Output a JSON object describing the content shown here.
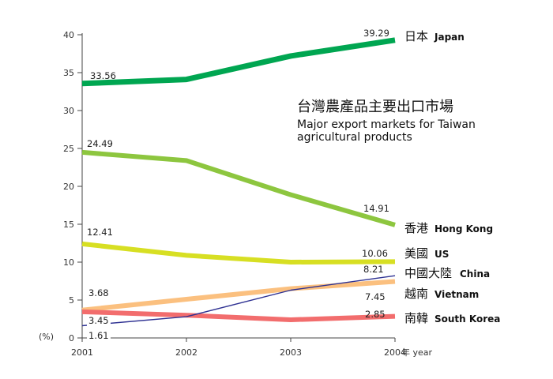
{
  "chart_data": {
    "type": "line",
    "title_zh": "台灣農產品主要出口市場",
    "title_en_line1": "Major export markets for Taiwan",
    "title_en_line2": "agricultural products",
    "x": [
      2001,
      2002,
      2003,
      2004
    ],
    "x_ticks": [
      "2001",
      "2002",
      "2003",
      "2004"
    ],
    "xlabel": "年 year",
    "ylabel": "(%)",
    "ylim": [
      0,
      40
    ],
    "y_ticks": [
      "0",
      "5",
      "10",
      "15",
      "20",
      "25",
      "30",
      "35",
      "40"
    ],
    "grid": false,
    "series": [
      {
        "key": "japan",
        "name_zh": "日本",
        "name_en": "Japan",
        "color": "#00a651",
        "values": [
          33.56,
          34.1,
          37.2,
          39.29
        ],
        "start_label": "33.56",
        "end_label": "39.29"
      },
      {
        "key": "hongkong",
        "name_zh": "香港",
        "name_en": "Hong Kong",
        "color": "#8dc63f",
        "values": [
          24.49,
          23.4,
          18.9,
          14.91
        ],
        "start_label": "24.49",
        "end_label": "14.91"
      },
      {
        "key": "us",
        "name_zh": "美國",
        "name_en": "US",
        "color": "#d7df23",
        "values": [
          12.41,
          10.9,
          10.0,
          10.06
        ],
        "start_label": "12.41",
        "end_label": "10.06"
      },
      {
        "key": "china",
        "name_zh": "中國大陸",
        "name_en": "China",
        "color": "#2e3192",
        "values": [
          1.61,
          2.8,
          6.3,
          8.21
        ],
        "start_label": "1.61",
        "end_label": "8.21"
      },
      {
        "key": "vietnam",
        "name_zh": "越南",
        "name_en": "Vietnam",
        "color": "#fbc07f",
        "values": [
          3.68,
          5.1,
          6.5,
          7.45
        ],
        "start_label": "3.68",
        "end_label": "7.45"
      },
      {
        "key": "korea",
        "name_zh": "南韓",
        "name_en": "South Korea",
        "color": "#f26d6d",
        "values": [
          3.45,
          3.0,
          2.4,
          2.85
        ],
        "start_label": "3.45",
        "end_label": "2.85"
      }
    ]
  }
}
